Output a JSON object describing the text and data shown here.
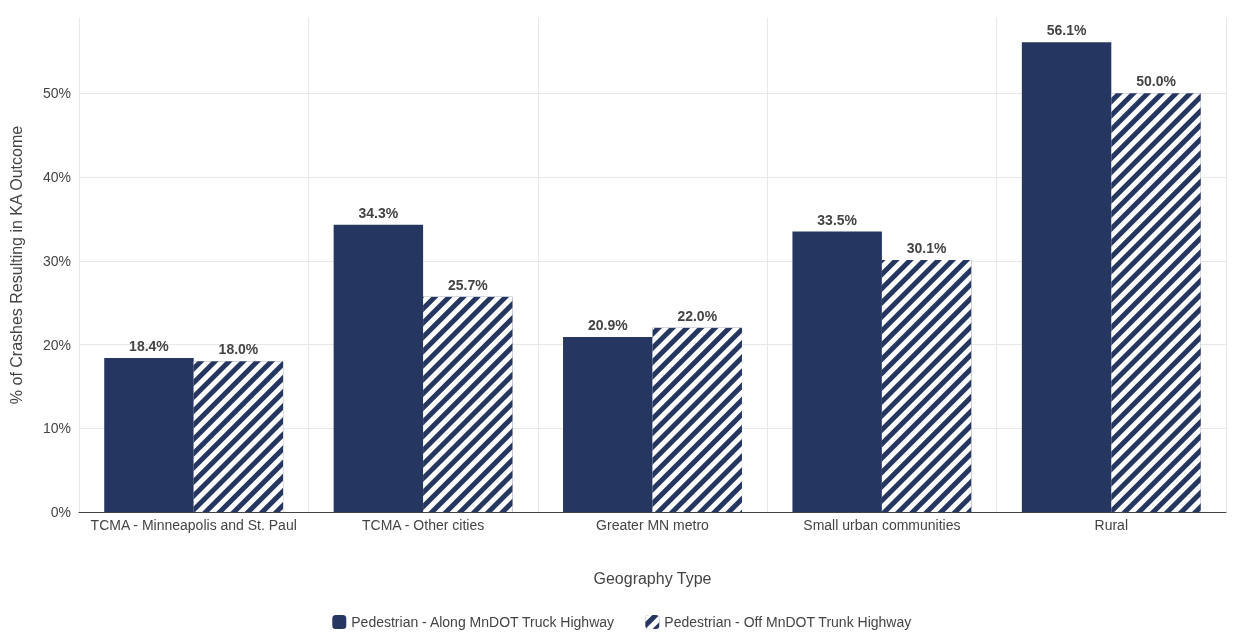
{
  "chart_data": {
    "type": "bar",
    "xlabel": "Geography Type",
    "ylabel": "% of Crashes Resulting in KA Outcome",
    "categories": [
      "TCMA - Minneapolis and St. Paul",
      "TCMA - Other cities",
      "Greater MN metro",
      "Small urban communities",
      "Rural"
    ],
    "series": [
      {
        "name": "Pedestrian - Along MnDOT Truck Highway",
        "color": "#253660",
        "values": [
          18.4,
          34.3,
          20.9,
          33.5,
          56.1
        ],
        "value_labels": [
          "18.4%",
          "34.3%",
          "20.9%",
          "33.5%",
          "56.1%"
        ]
      },
      {
        "name": "Pedestrian - Off MnDOT Trunk Highway",
        "color": "#253660",
        "values": [
          18.0,
          25.7,
          22.0,
          30.1,
          50.0
        ],
        "value_labels": [
          "18.0%",
          "25.7%",
          "22.0%",
          "30.1%",
          "50.0%"
        ]
      }
    ],
    "ylim": [
      0,
      59
    ],
    "yticks": [
      {
        "value": 0,
        "label": "0%"
      },
      {
        "value": 10,
        "label": "10%"
      },
      {
        "value": 20,
        "label": "20%"
      },
      {
        "value": 30,
        "label": "30%"
      },
      {
        "value": 40,
        "label": "40%"
      },
      {
        "value": 50,
        "label": "50%"
      }
    ],
    "grid": true,
    "legend": "bottom"
  }
}
